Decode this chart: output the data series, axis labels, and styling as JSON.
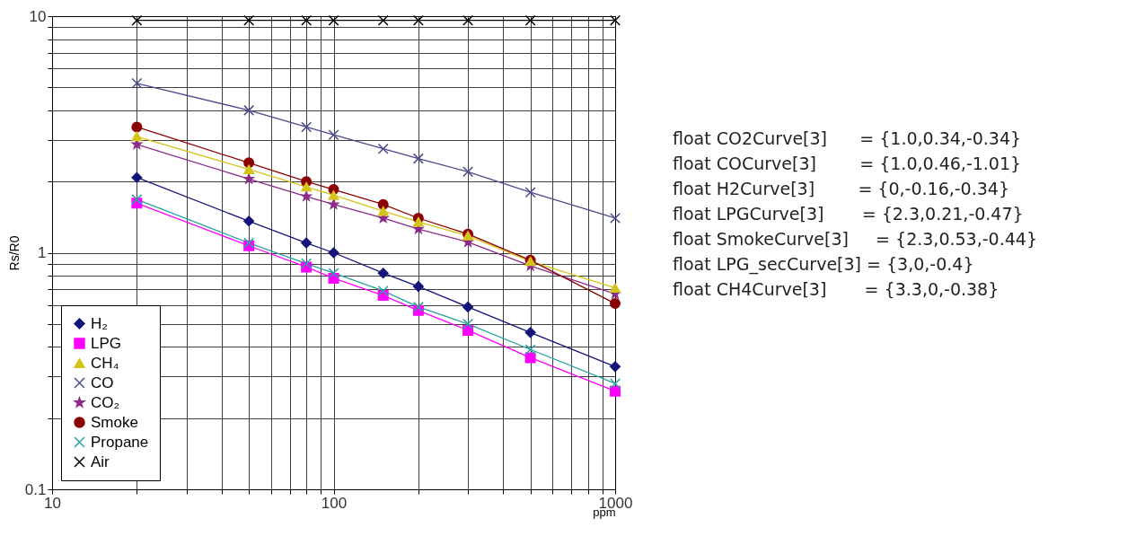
{
  "chart_data": {
    "type": "line",
    "xlabel": "ppm",
    "ylabel": "Rs/R0",
    "log": "xy",
    "grid": true,
    "legend": "bottom left",
    "x": [
      20,
      50,
      80,
      100,
      150,
      200,
      300,
      500,
      1000
    ],
    "xlim": [
      10,
      1000
    ],
    "xticks": [
      10,
      {
        "value": 20,
        "label": null
      },
      {
        "value": 30,
        "label": null
      },
      {
        "value": 40,
        "label": null
      },
      {
        "value": 50,
        "label": null
      },
      {
        "value": 60,
        "label": null
      },
      {
        "value": 70,
        "label": null
      },
      {
        "value": 80,
        "label": null
      },
      {
        "value": 90,
        "label": null
      },
      100,
      {
        "value": 200,
        "label": null
      },
      {
        "value": 300,
        "label": null
      },
      {
        "value": 400,
        "label": null
      },
      {
        "value": 500,
        "label": null
      },
      {
        "value": 600,
        "label": null
      },
      {
        "value": 700,
        "label": null
      },
      {
        "value": 800,
        "label": null
      },
      {
        "value": 900,
        "label": null
      },
      1000
    ],
    "ylim": [
      0.1,
      10
    ],
    "yticks": [
      0.1,
      {
        "value": 0.2,
        "label": null
      },
      {
        "value": 0.3,
        "label": null
      },
      {
        "value": 0.4,
        "label": null
      },
      {
        "value": 0.5,
        "label": null
      },
      {
        "value": 0.6,
        "label": null
      },
      {
        "value": 0.7,
        "label": null
      },
      {
        "value": 0.8,
        "label": null
      },
      {
        "value": 0.9,
        "label": null
      },
      1,
      {
        "value": 2,
        "label": null
      },
      {
        "value": 3,
        "label": null
      },
      {
        "value": 4,
        "label": null
      },
      {
        "value": 5,
        "label": null
      },
      {
        "value": 6,
        "label": null
      },
      {
        "value": 7,
        "label": null
      },
      {
        "value": 8,
        "label": null
      },
      {
        "value": 9,
        "label": null
      },
      10
    ],
    "series": [
      {
        "name": "H₂",
        "color": "#14147a",
        "marker": "diamond",
        "values": [
          2.08,
          1.36,
          1.1,
          1.0,
          0.82,
          0.72,
          0.59,
          0.46,
          0.33
        ]
      },
      {
        "name": "LPG",
        "color": "#ff00ff",
        "marker": "square",
        "values": [
          1.62,
          1.07,
          0.87,
          0.78,
          0.66,
          0.57,
          0.47,
          0.36,
          0.26
        ]
      },
      {
        "name": "CH₄",
        "color": "#d4c41a",
        "marker": "triangle",
        "values": [
          3.1,
          2.25,
          1.9,
          1.75,
          1.5,
          1.35,
          1.18,
          0.92,
          0.71
        ]
      },
      {
        "name": "CO",
        "color": "#4b4b8c",
        "marker": "cross",
        "values": [
          5.2,
          4.0,
          3.4,
          3.15,
          2.75,
          2.5,
          2.2,
          1.8,
          1.4
        ]
      },
      {
        "name": "CO₂",
        "color": "#8b2a8b",
        "marker": "star",
        "values": [
          2.87,
          2.05,
          1.73,
          1.6,
          1.4,
          1.26,
          1.11,
          0.88,
          0.67
        ]
      },
      {
        "name": "Smoke",
        "color": "#8b0000",
        "marker": "circle",
        "values": [
          3.4,
          2.4,
          2.0,
          1.85,
          1.6,
          1.4,
          1.2,
          0.93,
          0.61
        ]
      },
      {
        "name": "Propane",
        "color": "#2aa0a0",
        "marker": "cross",
        "values": [
          1.68,
          1.1,
          0.9,
          0.82,
          0.69,
          0.59,
          0.5,
          0.39,
          0.28
        ]
      },
      {
        "name": "Air",
        "color": "#000000",
        "marker": "cross",
        "values": [
          9.6,
          9.6,
          9.6,
          9.6,
          9.6,
          9.6,
          9.6,
          9.6,
          9.6
        ]
      }
    ],
    "annotations": [
      "float CO2Curve[3]      = {1.0,0.34,-0.34}",
      "float COCurve[3]        = {1.0,0.46,-1.01}",
      "float H2Curve[3]        = {0,-0.16,-0.34}",
      "float LPGCurve[3]       = {2.3,0.21,-0.47}",
      "float SmokeCurve[3]     = {2.3,0.53,-0.44}",
      "float LPG_secCurve[3] = {3,0,-0.4}",
      "float CH4Curve[3]       = {3.3,0,-0.38}"
    ]
  }
}
